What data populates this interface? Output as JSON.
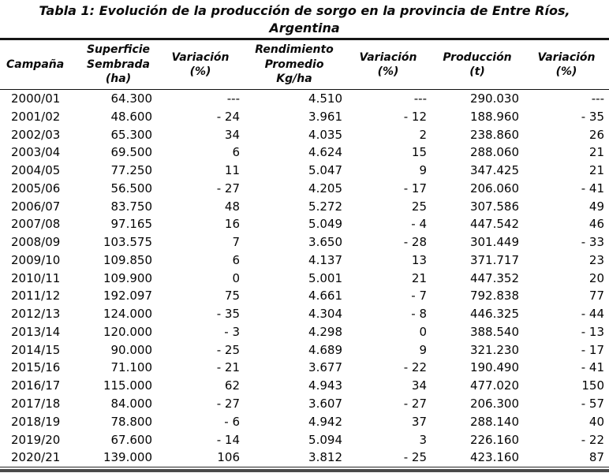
{
  "title": {
    "line1": "Tabla 1: Evolución de la producción de sorgo en la provincia de Entre Ríos,",
    "line2": "Argentina"
  },
  "table": {
    "columns": [
      {
        "id": "campana",
        "label": "Campaña",
        "lines": [
          "Campaña"
        ]
      },
      {
        "id": "superficie-sembrada",
        "label": "Superficie Sembrada (ha)",
        "lines": [
          "Superficie",
          "Sembrada",
          "(ha)"
        ]
      },
      {
        "id": "variacion-superficie",
        "label": "Variación (%)",
        "lines": [
          "Variación",
          "(%)"
        ]
      },
      {
        "id": "rendimiento-promedio",
        "label": "Rendimiento Promedio Kg/ha",
        "lines": [
          "Rendimiento",
          "Promedio",
          "Kg/ha"
        ]
      },
      {
        "id": "variacion-rendimiento",
        "label": "Variación (%)",
        "lines": [
          "Variación",
          "(%)"
        ]
      },
      {
        "id": "produccion",
        "label": "Producción (t)",
        "lines": [
          "Producción",
          "(t)"
        ]
      },
      {
        "id": "variacion-produccion",
        "label": "Variación (%)",
        "lines": [
          "Variación",
          "(%)"
        ]
      }
    ],
    "rows": [
      [
        "2000/01",
        "64.300",
        "---",
        "4.510",
        "---",
        "290.030",
        "---"
      ],
      [
        "2001/02",
        "48.600",
        "- 24",
        "3.961",
        "- 12",
        "188.960",
        "- 35"
      ],
      [
        "2002/03",
        "65.300",
        "34",
        "4.035",
        "2",
        "238.860",
        "26"
      ],
      [
        "2003/04",
        "69.500",
        "6",
        "4.624",
        "15",
        "288.060",
        "21"
      ],
      [
        "2004/05",
        "77.250",
        "11",
        "5.047",
        "9",
        "347.425",
        "21"
      ],
      [
        "2005/06",
        "56.500",
        "- 27",
        "4.205",
        "- 17",
        "206.060",
        "- 41"
      ],
      [
        "2006/07",
        "83.750",
        "48",
        "5.272",
        "25",
        "307.586",
        "49"
      ],
      [
        "2007/08",
        "97.165",
        "16",
        "5.049",
        "- 4",
        "447.542",
        "46"
      ],
      [
        "2008/09",
        "103.575",
        "7",
        "3.650",
        "- 28",
        "301.449",
        "- 33"
      ],
      [
        "2009/10",
        "109.850",
        "6",
        "4.137",
        "13",
        "371.717",
        "23"
      ],
      [
        "2010/11",
        "109.900",
        "0",
        "5.001",
        "21",
        "447.352",
        "20"
      ],
      [
        "2011/12",
        "192.097",
        "75",
        "4.661",
        "- 7",
        "792.838",
        "77"
      ],
      [
        "2012/13",
        "124.000",
        "- 35",
        "4.304",
        "- 8",
        "446.325",
        "- 44"
      ],
      [
        "2013/14",
        "120.000",
        "- 3",
        "4.298",
        "0",
        "388.540",
        "- 13"
      ],
      [
        "2014/15",
        "90.000",
        "- 25",
        "4.689",
        "9",
        "321.230",
        "- 17"
      ],
      [
        "2015/16",
        "71.100",
        "- 21",
        "3.677",
        "- 22",
        "190.490",
        "- 41"
      ],
      [
        "2016/17",
        "115.000",
        "62",
        "4.943",
        "34",
        "477.020",
        "150"
      ],
      [
        "2017/18",
        "84.000",
        "- 27",
        "3.607",
        "- 27",
        "206.300",
        "- 57"
      ],
      [
        "2018/19",
        "78.800",
        "- 6",
        "4.942",
        "37",
        "288.140",
        "40"
      ],
      [
        "2019/20",
        "67.600",
        "- 14",
        "5.094",
        "3",
        "226.160",
        "- 22"
      ],
      [
        "2020/21",
        "139.000",
        "106",
        "3.812",
        "- 25",
        "423.160",
        "87"
      ]
    ]
  }
}
